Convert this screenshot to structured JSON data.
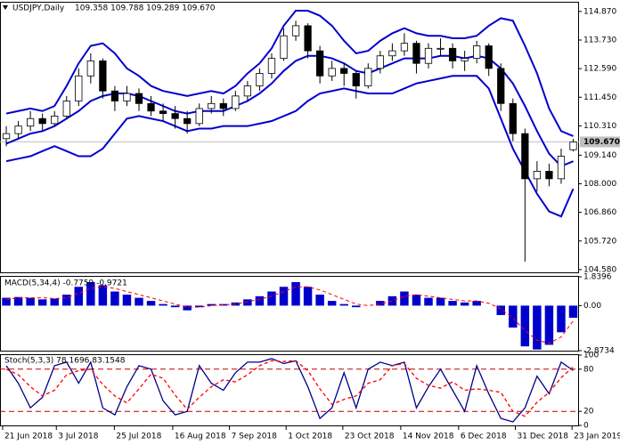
{
  "chart_data": [
    {
      "type": "candlestick",
      "title": "USDJPY,Daily",
      "ohlc_label": "109.358 109.788 109.289 109.670",
      "x": [
        0,
        1,
        2,
        3,
        4,
        5,
        6,
        7,
        8,
        9,
        10,
        11,
        12,
        13,
        14,
        15,
        16,
        17,
        18,
        19,
        20,
        21,
        22,
        23,
        24,
        25,
        26,
        27,
        28,
        29,
        30,
        31,
        32,
        33,
        34,
        35,
        36,
        37,
        38,
        39,
        40,
        41,
        42,
        43,
        44,
        45,
        46,
        47
      ],
      "open": [
        109.8,
        110.0,
        110.3,
        110.6,
        110.4,
        110.7,
        111.3,
        112.3,
        112.9,
        111.7,
        111.3,
        111.6,
        111.2,
        110.9,
        110.8,
        110.6,
        110.4,
        111.0,
        111.2,
        111.0,
        111.5,
        111.9,
        112.4,
        113.0,
        113.9,
        114.3,
        113.3,
        112.3,
        112.6,
        112.4,
        111.9,
        112.6,
        113.1,
        113.3,
        113.6,
        112.8,
        113.4,
        113.4,
        112.9,
        113.0,
        113.5,
        112.6,
        111.2,
        110.0,
        108.2,
        108.5,
        108.2,
        109.358
      ],
      "high": [
        110.3,
        110.5,
        110.9,
        110.8,
        110.9,
        111.5,
        112.6,
        113.2,
        113.0,
        111.9,
        111.9,
        111.8,
        111.5,
        111.2,
        111.1,
        110.9,
        111.2,
        111.5,
        111.4,
        111.7,
        112.1,
        112.6,
        113.2,
        114.2,
        114.5,
        114.4,
        113.5,
        112.9,
        112.8,
        112.5,
        112.8,
        113.3,
        113.6,
        114.0,
        113.7,
        113.6,
        113.8,
        113.6,
        113.3,
        113.7,
        113.6,
        112.8,
        111.4,
        110.2,
        108.9,
        108.8,
        109.4,
        109.788
      ],
      "low": [
        109.5,
        109.8,
        110.1,
        110.1,
        110.3,
        110.6,
        111.1,
        112.0,
        111.4,
        110.9,
        111.1,
        110.9,
        110.7,
        110.5,
        110.2,
        110.0,
        110.3,
        110.8,
        110.7,
        110.9,
        111.3,
        111.7,
        112.2,
        112.9,
        113.7,
        113.0,
        112.0,
        112.1,
        111.9,
        111.4,
        111.8,
        112.4,
        112.9,
        113.1,
        112.4,
        112.6,
        113.1,
        112.6,
        112.5,
        112.8,
        112.3,
        110.9,
        109.7,
        104.9,
        107.7,
        107.9,
        108.0,
        109.289
      ],
      "close": [
        110.0,
        110.3,
        110.6,
        110.4,
        110.7,
        111.3,
        112.3,
        112.9,
        111.7,
        111.3,
        111.6,
        111.2,
        110.9,
        110.8,
        110.6,
        110.4,
        111.0,
        111.2,
        111.0,
        111.5,
        111.9,
        112.4,
        113.0,
        113.9,
        114.3,
        113.3,
        112.3,
        112.6,
        112.4,
        111.9,
        112.6,
        113.1,
        113.3,
        113.6,
        112.8,
        113.4,
        113.4,
        112.9,
        113.0,
        113.5,
        112.6,
        111.2,
        110.0,
        108.2,
        108.5,
        108.2,
        109.1,
        109.67
      ],
      "up_color": "#ffffff",
      "down_color": "#000000",
      "wick_color": "#000000",
      "series": [
        {
          "color": "#0000cd",
          "values": [
            110.8,
            110.9,
            111.0,
            110.9,
            111.1,
            111.9,
            112.8,
            113.5,
            113.6,
            113.2,
            112.6,
            112.3,
            111.9,
            111.7,
            111.6,
            111.5,
            111.6,
            111.7,
            111.6,
            111.9,
            112.4,
            112.8,
            113.4,
            114.3,
            114.9,
            114.9,
            114.7,
            114.3,
            113.7,
            113.2,
            113.3,
            113.7,
            114.0,
            114.2,
            114.0,
            113.9,
            113.9,
            113.8,
            113.8,
            113.9,
            114.3,
            114.6,
            114.5,
            113.5,
            112.4,
            111.0,
            110.1,
            109.9
          ]
        },
        {
          "color": "#0000cd",
          "values": [
            109.6,
            109.8,
            110.0,
            110.1,
            110.3,
            110.6,
            110.9,
            111.3,
            111.5,
            111.6,
            111.6,
            111.5,
            111.3,
            111.1,
            110.9,
            110.8,
            110.9,
            110.9,
            110.9,
            111.1,
            111.3,
            111.6,
            112.0,
            112.5,
            112.9,
            113.1,
            113.1,
            113.0,
            112.8,
            112.5,
            112.4,
            112.6,
            112.8,
            113.0,
            113.0,
            113.0,
            113.1,
            113.1,
            113.0,
            113.1,
            113.0,
            112.6,
            112.0,
            111.1,
            110.1,
            109.2,
            108.7,
            108.9
          ]
        },
        {
          "color": "#0000cd",
          "values": [
            108.9,
            109.0,
            109.1,
            109.3,
            109.5,
            109.3,
            109.1,
            109.1,
            109.4,
            110.0,
            110.6,
            110.7,
            110.6,
            110.5,
            110.3,
            110.1,
            110.2,
            110.2,
            110.3,
            110.3,
            110.3,
            110.4,
            110.5,
            110.7,
            110.9,
            111.3,
            111.6,
            111.7,
            111.8,
            111.7,
            111.6,
            111.6,
            111.6,
            111.8,
            112.0,
            112.1,
            112.2,
            112.3,
            112.3,
            112.3,
            111.8,
            110.6,
            109.4,
            108.5,
            107.6,
            106.9,
            106.7,
            107.8
          ]
        }
      ],
      "current_price": {
        "value": 109.67,
        "label": "109.670"
      },
      "xlim": [
        -0.52,
        47.48
      ],
      "xticks": [
        {
          "value": -0.3,
          "label": "21 Jun 2018"
        },
        {
          "value": 4.15,
          "label": "3 Jul 2018"
        },
        {
          "value": 8.96,
          "label": "25 Jul 2018"
        },
        {
          "value": 13.8,
          "label": "16 Aug 2018"
        },
        {
          "value": 18.5,
          "label": "7 Sep 2018"
        },
        {
          "value": 23.2,
          "label": "1 Oct 2018"
        },
        {
          "value": 27.9,
          "label": "23 Oct 2018"
        },
        {
          "value": 32.7,
          "label": "14 Nov 2018"
        },
        {
          "value": 37.5,
          "label": "6 Dec 2018"
        },
        {
          "value": 42.2,
          "label": "31 Dec 2018"
        },
        {
          "value": 46.9,
          "label": "23 Jan 2019"
        }
      ],
      "ylim": [
        104.47,
        115.22
      ],
      "yticks": [
        {
          "value": 114.87,
          "label": "114.870"
        },
        {
          "value": 113.73,
          "label": "113.730"
        },
        {
          "value": 112.59,
          "label": "112.590"
        },
        {
          "value": 111.45,
          "label": "111.450"
        },
        {
          "value": 110.31,
          "label": "110.310"
        },
        {
          "value": 109.14,
          "label": "109.140"
        },
        {
          "value": 108.0,
          "label": "108.000"
        },
        {
          "value": 106.86,
          "label": "106.860"
        },
        {
          "value": 105.72,
          "label": "105.720"
        },
        {
          "value": 104.58,
          "label": "104.580"
        }
      ]
    },
    {
      "type": "macd",
      "title": "MACD(5,34,4) -0.7759 -0.9721",
      "color": "#0000cd",
      "signal_color": "#ff0000",
      "values": [
        0.5,
        0.55,
        0.5,
        0.4,
        0.45,
        0.7,
        1.2,
        1.5,
        1.3,
        0.9,
        0.7,
        0.5,
        0.3,
        0.1,
        -0.1,
        -0.3,
        -0.1,
        0.1,
        0.1,
        0.2,
        0.4,
        0.6,
        0.9,
        1.2,
        1.5,
        1.2,
        0.7,
        0.3,
        0.1,
        -0.1,
        0.0,
        0.3,
        0.6,
        0.9,
        0.7,
        0.5,
        0.5,
        0.3,
        0.2,
        0.3,
        0.0,
        -0.6,
        -1.4,
        -2.6,
        -2.8,
        -2.5,
        -1.7,
        -0.7759
      ],
      "signal": [
        0.4,
        0.5,
        0.5,
        0.5,
        0.45,
        0.5,
        0.8,
        1.1,
        1.2,
        1.1,
        0.9,
        0.7,
        0.5,
        0.3,
        0.1,
        -0.1,
        -0.1,
        0.0,
        0.05,
        0.1,
        0.25,
        0.4,
        0.6,
        0.9,
        1.2,
        1.2,
        1.0,
        0.7,
        0.4,
        0.1,
        0.0,
        0.1,
        0.3,
        0.6,
        0.7,
        0.6,
        0.5,
        0.4,
        0.3,
        0.3,
        0.15,
        -0.2,
        -0.8,
        -1.6,
        -2.2,
        -2.4,
        -2.0,
        -0.9721
      ],
      "ylim": [
        -2.8734,
        1.8396
      ],
      "yticks": [
        1.8396,
        {
          "value": 0,
          "label": "0.00"
        },
        -2.8734
      ]
    },
    {
      "type": "stochastic",
      "title": "Stoch(5,3,3) 78.1696 83.1548",
      "series": [
        {
          "color": "#00008b",
          "values": [
            85,
            60,
            25,
            40,
            85,
            90,
            60,
            90,
            25,
            15,
            55,
            85,
            80,
            35,
            15,
            20,
            85,
            60,
            50,
            75,
            90,
            90,
            95,
            88,
            92,
            55,
            10,
            25,
            75,
            25,
            80,
            90,
            85,
            90,
            25,
            55,
            80,
            50,
            20,
            85,
            45,
            10,
            5,
            25,
            70,
            45,
            90,
            78.1696
          ]
        },
        {
          "color": "#ff0000",
          "dashed": true,
          "values": [
            80,
            72,
            55,
            42,
            50,
            72,
            78,
            80,
            58,
            42,
            32,
            52,
            73,
            67,
            43,
            23,
            40,
            55,
            65,
            62,
            72,
            85,
            92,
            91,
            92,
            78,
            52,
            30,
            37,
            42,
            60,
            65,
            85,
            88,
            67,
            57,
            53,
            62,
            50,
            52,
            50,
            47,
            20,
            13,
            33,
            47,
            68,
            83.1548
          ]
        }
      ],
      "levels": [
        80,
        20
      ],
      "level_color": "#c00000",
      "ylim": [
        0,
        100
      ],
      "yticks": [
        100,
        80,
        20,
        0
      ]
    }
  ]
}
